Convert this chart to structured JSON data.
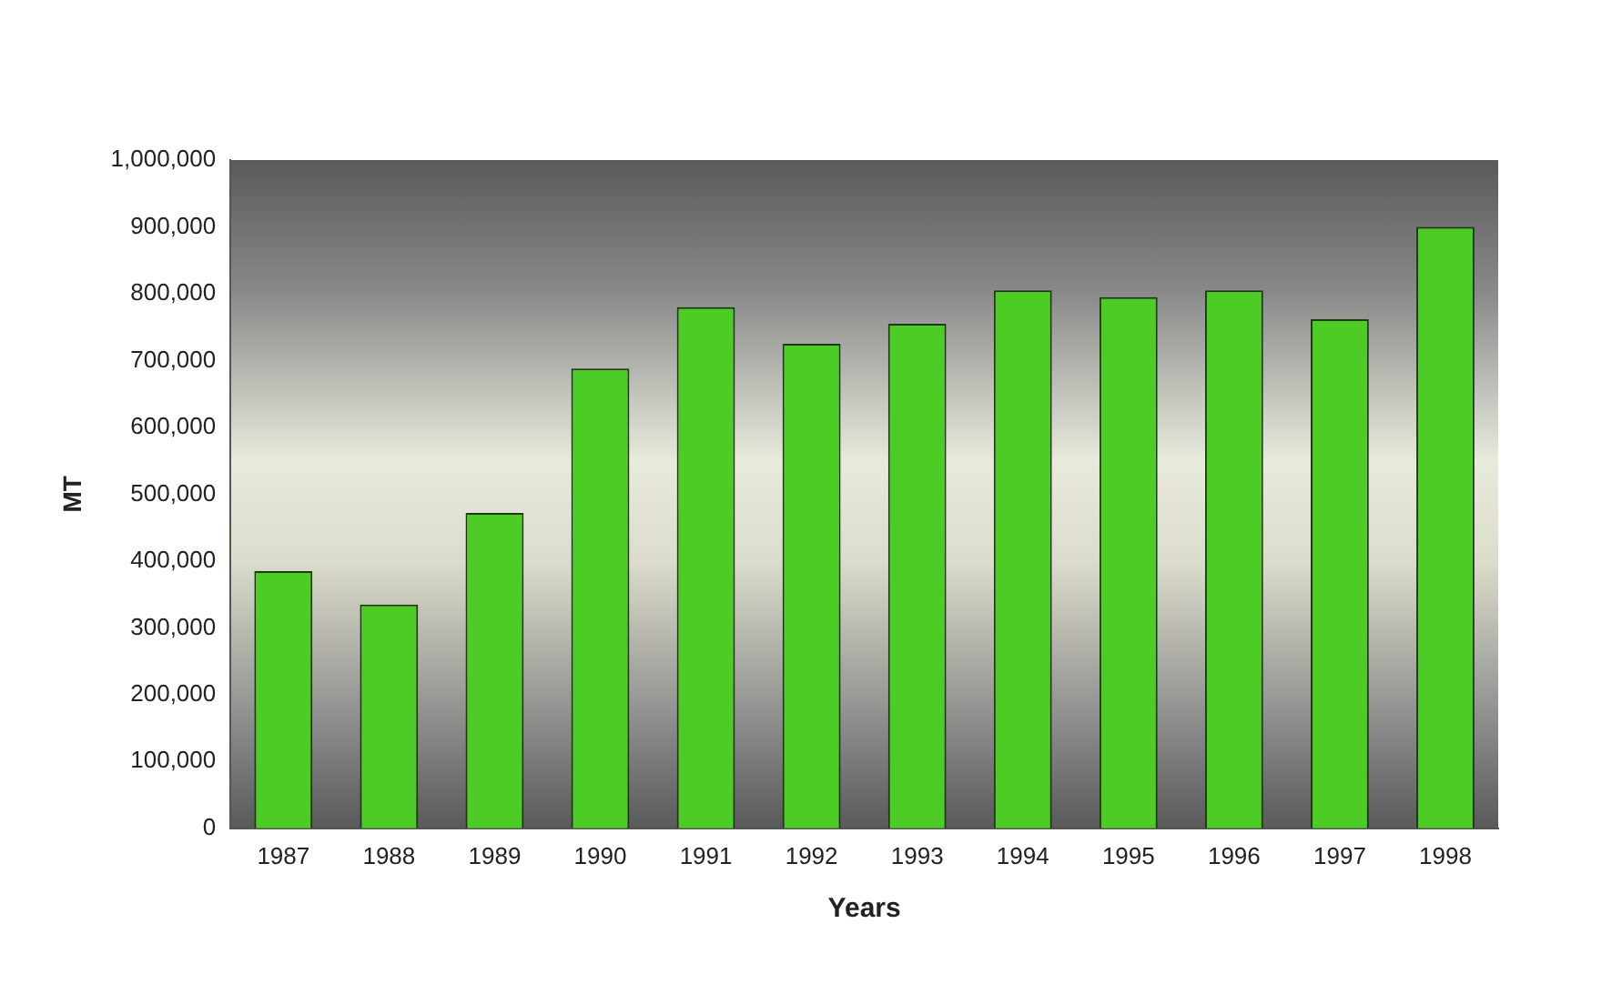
{
  "chart_data": {
    "type": "bar",
    "xlabel": "Years",
    "ylabel": "MT",
    "categories": [
      "1987",
      "1988",
      "1989",
      "1990",
      "1991",
      "1992",
      "1993",
      "1994",
      "1995",
      "1996",
      "1997",
      "1998"
    ],
    "values": [
      385000,
      335000,
      472000,
      688000,
      780000,
      725000,
      755000,
      805000,
      795000,
      805000,
      762000,
      900000
    ],
    "color": "#4ccc24",
    "ylim": [
      0,
      1000000
    ],
    "yticks": [
      0,
      {
        "value": 100000,
        "label": "100,000"
      },
      {
        "value": 200000,
        "label": "200,000"
      },
      {
        "value": 300000,
        "label": "300,000"
      },
      {
        "value": 400000,
        "label": "400,000"
      },
      {
        "value": 500000,
        "label": "500,000"
      },
      {
        "value": 600000,
        "label": "600,000"
      },
      {
        "value": 700000,
        "label": "700,000"
      },
      {
        "value": 800000,
        "label": "800,000"
      },
      {
        "value": 900000,
        "label": "900,000"
      },
      {
        "value": 1000000,
        "label": "1,000,000"
      }
    ],
    "grid": false,
    "legend": false
  }
}
